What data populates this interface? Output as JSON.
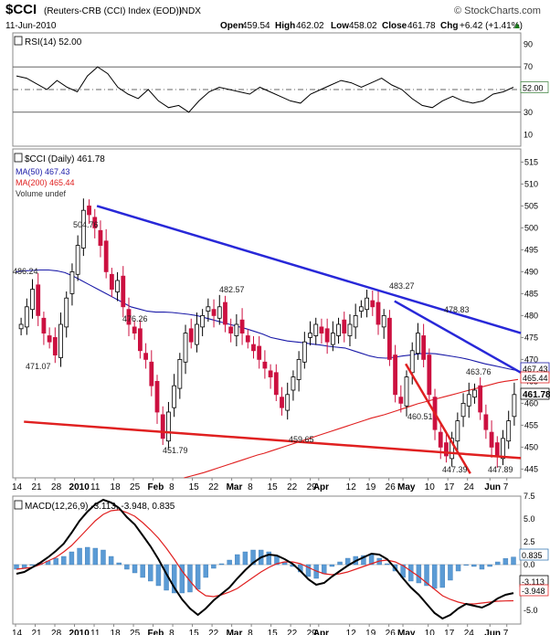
{
  "header": {
    "symbol": "$CCI",
    "name": "(Reuters-CRB (CCI) Index (EOD))",
    "exchange": "INDX",
    "date": "11-Jun-2010",
    "watermark": "© StockCharts.com",
    "open_label": "Open",
    "open": "459.54",
    "high_label": "High",
    "high": "462.02",
    "low_label": "Low",
    "low": "458.02",
    "close_label": "Close",
    "close": "461.78",
    "chg_label": "Chg",
    "chg": "+6.42 (+1.41%)",
    "chg_icon": "up-triangle-icon"
  },
  "chart_data": [
    {
      "type": "line",
      "panel": "RSI",
      "title": "RSI(14) 52.00",
      "ylim": [
        0,
        100
      ],
      "yticks": [
        10,
        30,
        50,
        70,
        90
      ],
      "reference_lines": [
        30,
        50,
        70
      ],
      "last_value": "52.00",
      "series": [
        {
          "values": [
            62,
            60,
            55,
            50,
            58,
            52,
            48,
            62,
            70,
            64,
            52,
            46,
            42,
            50,
            40,
            34,
            36,
            30,
            40,
            48,
            52,
            50,
            48,
            46,
            52,
            48,
            44,
            40,
            38,
            46,
            50,
            54,
            58,
            56,
            52,
            56,
            60,
            54,
            50,
            42,
            36,
            34,
            40,
            44,
            40,
            38,
            40,
            46,
            48,
            52
          ]
        }
      ]
    },
    {
      "type": "line",
      "panel": "price",
      "title": "$CCI (Daily) 461.78",
      "ylim": [
        443,
        518
      ],
      "yticks": [
        445,
        450,
        455,
        460,
        465,
        470,
        475,
        480,
        485,
        490,
        495,
        500,
        505,
        510,
        515
      ],
      "x_ticks": [
        "14",
        "21",
        "28",
        "2010",
        "11",
        "18",
        "25",
        "Feb",
        "8",
        "15",
        "22",
        "Mar",
        "8",
        "15",
        "22",
        "29",
        "Apr",
        "12",
        "19",
        "26",
        "May",
        "10",
        "17",
        "24",
        "Jun",
        "7"
      ],
      "legend": [
        {
          "name": "$CCI (Daily) 461.78",
          "color": "#000000"
        },
        {
          "name": "MA(50) 467.43",
          "color": "#1a1aa8"
        },
        {
          "name": "MA(200) 465.44",
          "color": "#e02020"
        },
        {
          "name": "Volume undef",
          "color": "#555555"
        }
      ],
      "price_annotations": [
        "486.24",
        "471.07",
        "504.76",
        "476.26",
        "451.79",
        "482.57",
        "459.65",
        "483.27",
        "478.83",
        "460.51",
        "447.39",
        "463.76",
        "447.89"
      ],
      "last_value_boxes": [
        "467.43",
        "465.44",
        "461.78"
      ],
      "closes": [
        478,
        482,
        486,
        480,
        476,
        474,
        471,
        478,
        484,
        490,
        496,
        504,
        503,
        500,
        496,
        490,
        486,
        488,
        482,
        478,
        476,
        472,
        470,
        464,
        458,
        452,
        458,
        464,
        470,
        476,
        474,
        478,
        480,
        482,
        480,
        482,
        478,
        476,
        478,
        476,
        474,
        472,
        470,
        468,
        466,
        462,
        459,
        462,
        466,
        470,
        474,
        476,
        478,
        476,
        474,
        476,
        478,
        476,
        478,
        480,
        482,
        484,
        482,
        478,
        480,
        470,
        462,
        460,
        466,
        472,
        476,
        470,
        462,
        454,
        450,
        448,
        452,
        456,
        460,
        462,
        463,
        458,
        454,
        450,
        448,
        452,
        456,
        462
      ],
      "ma50": [
        490,
        490.2,
        490.3,
        490.4,
        490.4,
        490.2,
        489.8,
        489,
        488,
        487,
        486,
        485,
        484,
        483,
        482,
        481.5,
        481,
        480.8,
        480.8,
        480.7,
        480.5,
        480.3,
        480,
        479.5,
        479,
        478.5,
        478,
        477.5,
        477,
        476.4,
        475.8,
        475,
        474.6,
        474.2,
        474,
        473.8,
        473.5,
        473.3,
        473,
        472.8,
        472.6,
        472,
        471.4,
        470.8,
        470.4,
        470.3,
        470.5,
        470.8,
        471,
        471.3,
        471.4,
        471.3,
        471,
        470.7,
        470.4,
        470,
        469.5,
        469,
        468.6,
        468.2,
        467.8,
        467.43
      ],
      "ma200": [
        443,
        443.4,
        443.8,
        444.2,
        444.7,
        445.2,
        445.7,
        446.2,
        446.7,
        447.2,
        447.7,
        448.2,
        448.6,
        449.1,
        449.6,
        450.1,
        450.6,
        451.1,
        451.6,
        452.1,
        452.6,
        453.1,
        453.6,
        454.1,
        454.6,
        455.1,
        455.6,
        456.1,
        456.6,
        457,
        457.4,
        457.9,
        458.4,
        458.9,
        459.4,
        459.9,
        460.3,
        460.7,
        461.1,
        461.5,
        461.9,
        462.3,
        462.7,
        463.1,
        463.5,
        463.9,
        464.3,
        464.7,
        465,
        465.2,
        465.44
      ],
      "trendlines": [
        {
          "color": "#2828d8",
          "from": [
            "Jan 11",
            505
          ],
          "to": [
            "Jun 11",
            476
          ]
        },
        {
          "color": "#2828d8",
          "from": [
            "Apr 27",
            483.3
          ],
          "to": [
            "Jun 11",
            467
          ]
        },
        {
          "color": "#e02020",
          "from": [
            "Dec 17",
            455.8
          ],
          "to": [
            "Jun 11",
            447.5
          ]
        },
        {
          "color": "#e02020",
          "from": [
            "May 1",
            469
          ],
          "to": [
            "May 24",
            444
          ]
        }
      ]
    },
    {
      "type": "line",
      "panel": "MACD",
      "title": "MACD(12,26,9) -3.113, -3.948, 0.835",
      "ylim": [
        -6.5,
        7.5
      ],
      "yticks": [
        -5.0,
        -2.5,
        0.0,
        2.5,
        5.0,
        7.5
      ],
      "last_value_boxes": [
        "0.835",
        "-3.113",
        "-3.948"
      ],
      "series": [
        {
          "name": "MACD(12,26,9)",
          "color": "#000000",
          "values": [
            -1,
            -0.8,
            -0.3,
            0.2,
            0.8,
            1.5,
            2.3,
            3.5,
            4.8,
            5.8,
            6.6,
            7.1,
            6.8,
            6.2,
            5.2,
            4.4,
            3.2,
            2,
            0.6,
            -1,
            -2.5,
            -3.8,
            -4.8,
            -5.5,
            -4.8,
            -3.9,
            -3.2,
            -2.5,
            -1.5,
            -0.6,
            0.2,
            0.8,
            1.1,
            1.0,
            0.6,
            0.1,
            -0.7,
            -1.6,
            -2.2,
            -2.0,
            -1.3,
            -0.7,
            -0.1,
            0.4,
            0.8,
            1.2,
            1.1,
            0.6,
            -0.4,
            -1.5,
            -2.5,
            -3.3,
            -4.3,
            -5.3,
            -5.9,
            -5.5,
            -4.8,
            -4.3,
            -4.5,
            -4.7,
            -4.3,
            -3.7,
            -3.3,
            -3.113
          ]
        },
        {
          "name": "Signal",
          "color": "#e02020",
          "values": [
            -0.5,
            -0.4,
            -0.3,
            0,
            0.4,
            0.8,
            1.4,
            2.1,
            3.0,
            3.9,
            4.8,
            5.5,
            5.9,
            6.0,
            5.7,
            5.3,
            4.6,
            3.8,
            2.9,
            1.8,
            0.6,
            -0.7,
            -1.8,
            -2.8,
            -3.4,
            -3.5,
            -3.3,
            -3.0,
            -2.6,
            -2.0,
            -1.4,
            -0.8,
            -0.3,
            0.1,
            0.3,
            0.3,
            0.1,
            -0.3,
            -0.7,
            -1.0,
            -1.1,
            -1.0,
            -0.8,
            -0.5,
            -0.2,
            0.1,
            0.4,
            0.5,
            0.3,
            -0.1,
            -0.7,
            -1.3,
            -2.0,
            -2.7,
            -3.4,
            -3.8,
            -4.1,
            -4.3,
            -4.3,
            -4.2,
            -4.1,
            -4.0,
            -3.97,
            -3.948
          ]
        }
      ]
    }
  ],
  "colors": {
    "up": "#000000",
    "down": "#cc1040",
    "ma50": "#1a1aa8",
    "ma200": "#e02020",
    "trend_blue": "#2828d8",
    "hist": "#5b9bd5"
  }
}
